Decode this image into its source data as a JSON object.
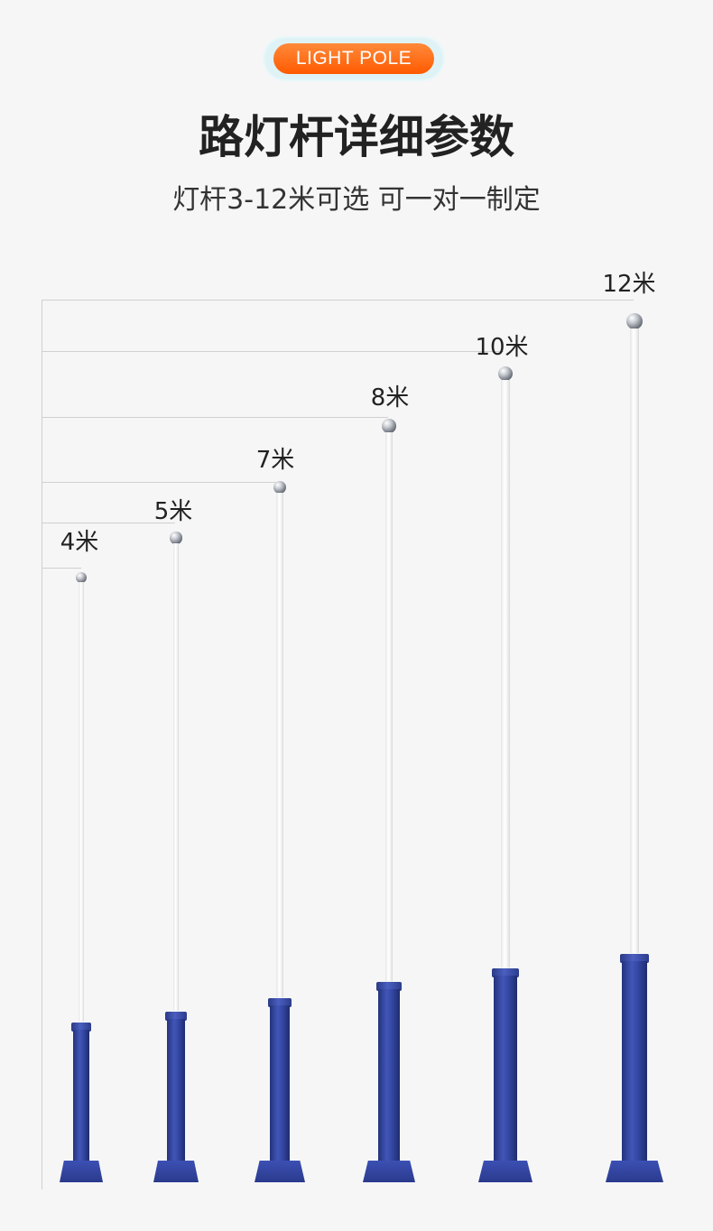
{
  "badge": {
    "label": "LIGHT POLE"
  },
  "header": {
    "title": "路灯杆详细参数",
    "subtitle": "灯杆3-12米可选  可一对一制定"
  },
  "poles": [
    {
      "label": "4米",
      "height_m": 4
    },
    {
      "label": "5米",
      "height_m": 5
    },
    {
      "label": "7米",
      "height_m": 7
    },
    {
      "label": "8米",
      "height_m": 8
    },
    {
      "label": "10米",
      "height_m": 10
    },
    {
      "label": "12米",
      "height_m": 12
    }
  ],
  "colors": {
    "badge": "#ff6a10",
    "pole_shaft": "#ffffff",
    "pole_base": "#3346a2",
    "background": "#f6f6f6"
  }
}
